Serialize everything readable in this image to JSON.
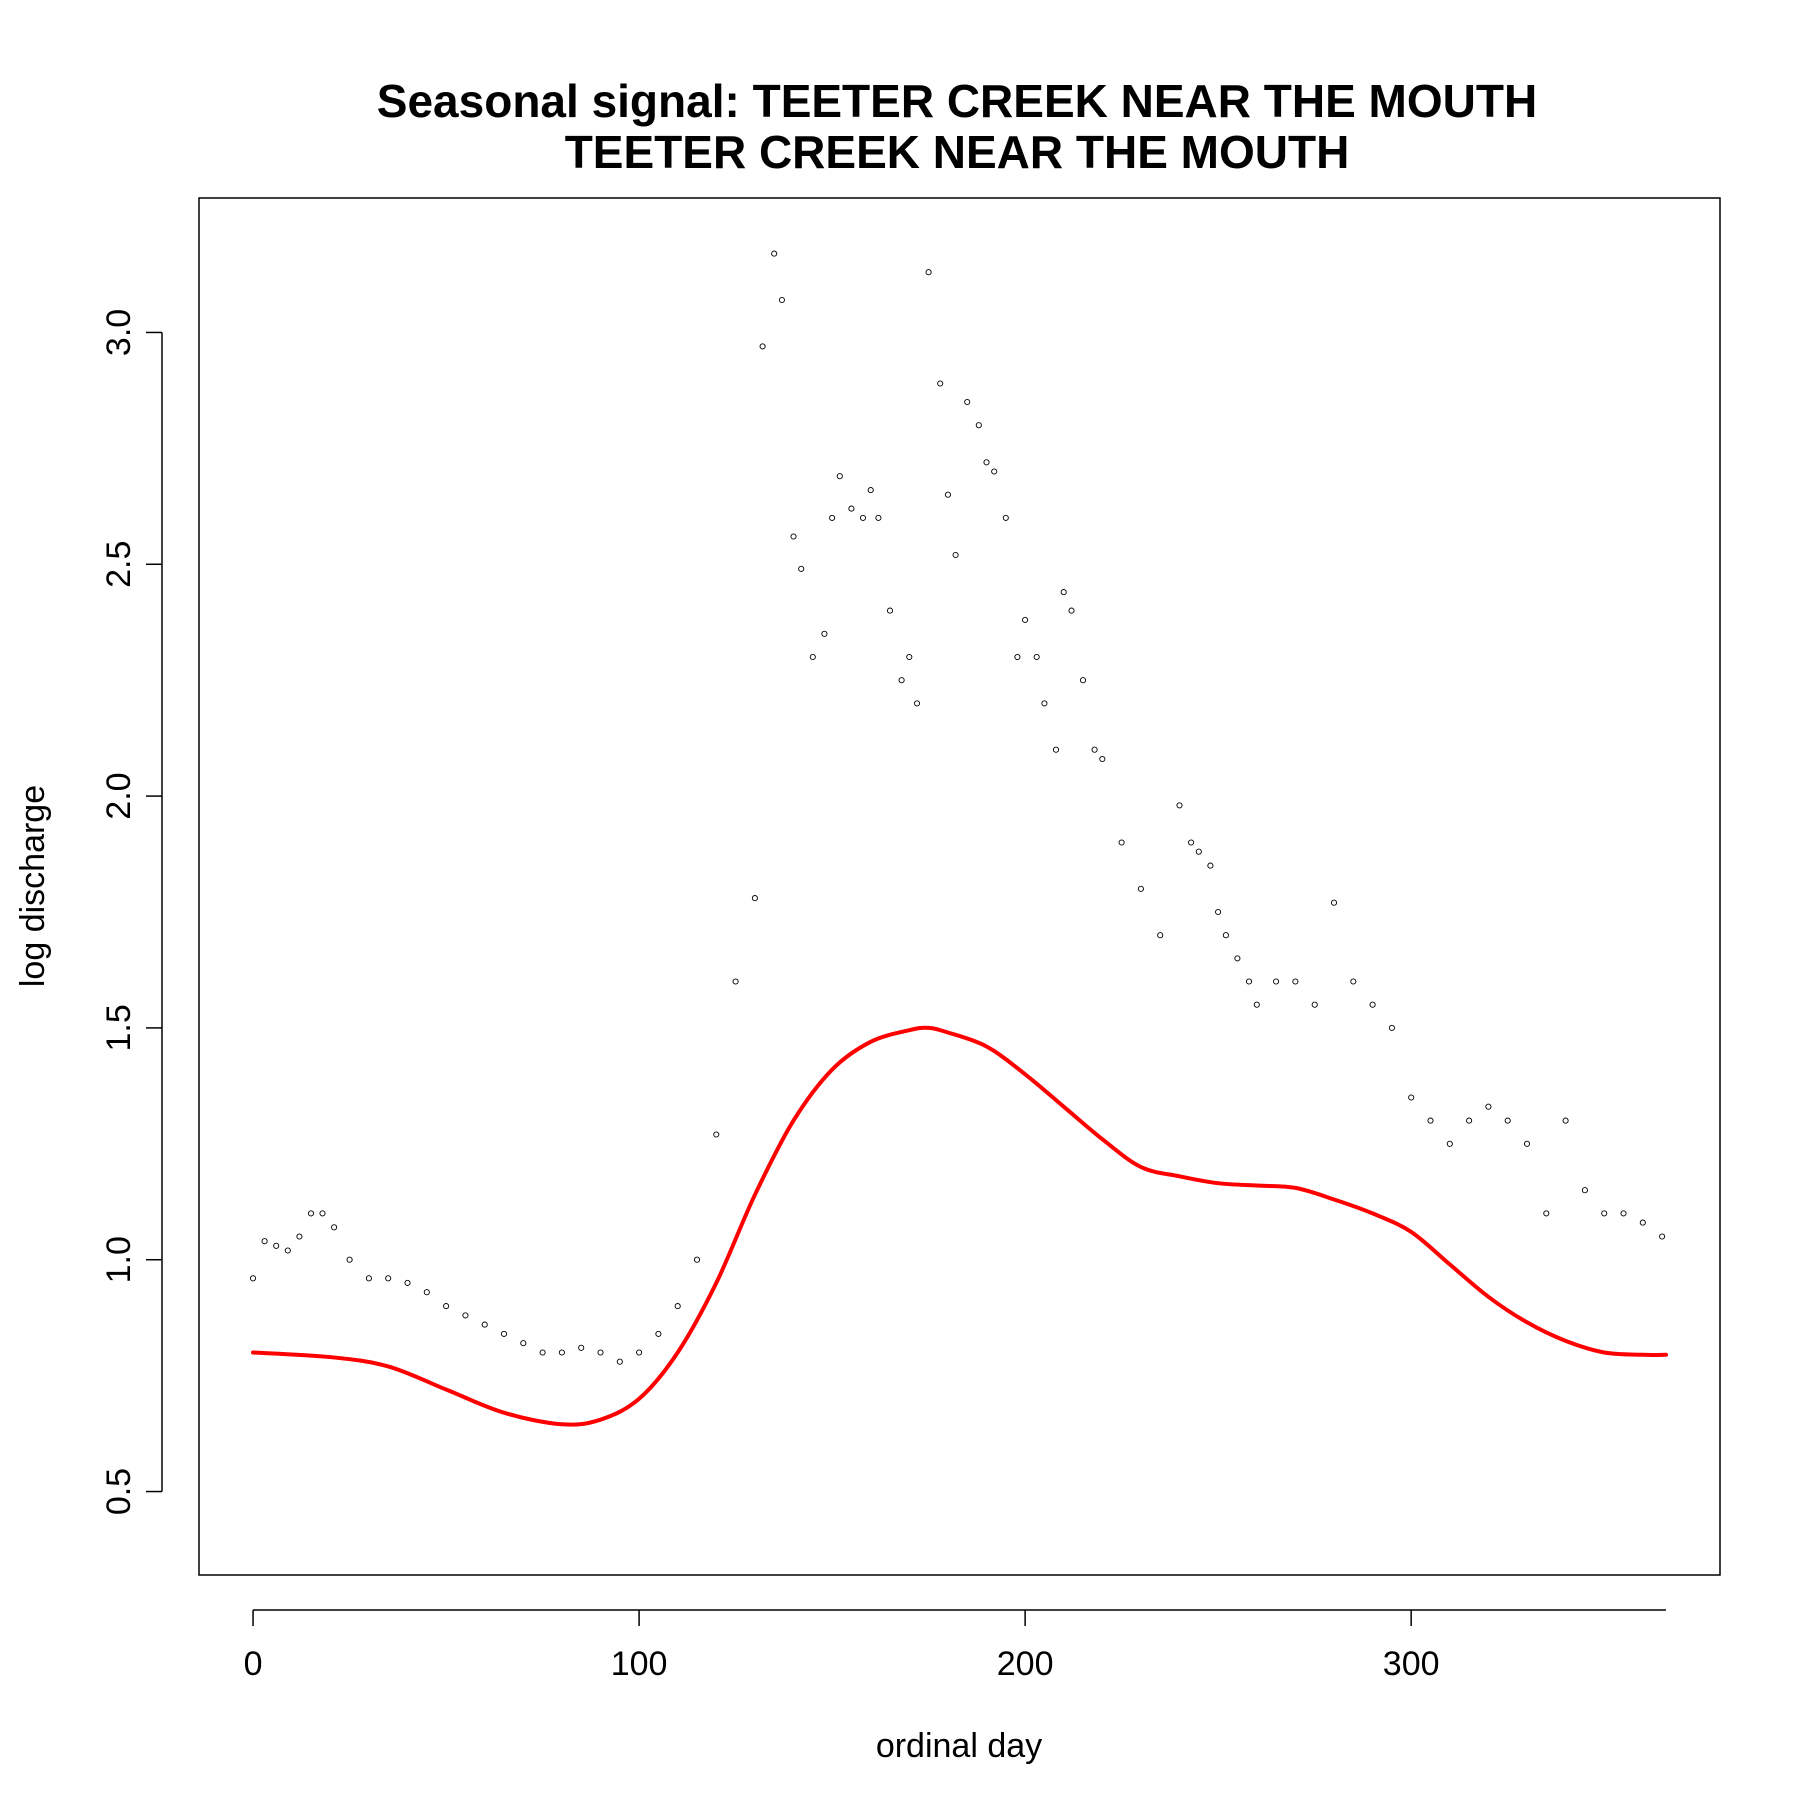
{
  "chart_data": {
    "type": "scatter",
    "title": "Seasonal signal: TEETER CREEK NEAR THE MOUTH",
    "subtitle": "TEETER CREEK NEAR THE MOUTH",
    "xlabel": "ordinal day",
    "ylabel": "log discharge",
    "xlim": [
      -14,
      380
    ],
    "ylim": [
      0.32,
      3.29
    ],
    "x_ticks": [
      0,
      100,
      200,
      300
    ],
    "x_tick_labels": [
      "0",
      "100",
      "200",
      "300"
    ],
    "y_ticks": [
      0.5,
      1.0,
      1.5,
      2.0,
      2.5,
      3.0
    ],
    "y_tick_labels": [
      "0.5",
      "1.0",
      "1.5",
      "2.0",
      "2.5",
      "3.0"
    ],
    "grid": false,
    "legend": "none",
    "colors": {
      "points": "#000000",
      "smooth": "#ff0000"
    },
    "series": [
      {
        "kind": "points",
        "description_points": "daily observations (approximate sample)",
        "x": [
          0,
          3,
          6,
          9,
          12,
          15,
          18,
          21,
          25,
          30,
          35,
          40,
          45,
          50,
          55,
          60,
          65,
          70,
          75,
          80,
          85,
          90,
          95,
          100,
          105,
          110,
          115,
          120,
          125,
          130,
          132,
          135,
          137,
          140,
          142,
          145,
          148,
          150,
          152,
          155,
          158,
          160,
          162,
          165,
          168,
          170,
          172,
          175,
          178,
          180,
          182,
          185,
          188,
          190,
          192,
          195,
          198,
          200,
          203,
          205,
          208,
          210,
          212,
          215,
          218,
          220,
          225,
          230,
          235,
          240,
          243,
          245,
          248,
          250,
          252,
          255,
          258,
          260,
          265,
          270,
          275,
          280,
          285,
          290,
          295,
          300,
          305,
          310,
          315,
          320,
          325,
          330,
          335,
          340,
          345,
          350,
          355,
          360,
          365
        ],
        "y": [
          0.96,
          1.04,
          1.03,
          1.02,
          1.05,
          1.1,
          1.1,
          1.07,
          1.0,
          0.96,
          0.96,
          0.95,
          0.93,
          0.9,
          0.88,
          0.86,
          0.84,
          0.82,
          0.8,
          0.8,
          0.81,
          0.8,
          0.78,
          0.8,
          0.84,
          0.9,
          1.0,
          1.27,
          1.6,
          1.78,
          2.97,
          3.17,
          3.07,
          2.56,
          2.49,
          2.3,
          2.35,
          2.6,
          2.69,
          2.62,
          2.6,
          2.66,
          2.6,
          2.4,
          2.25,
          2.3,
          2.2,
          3.13,
          2.89,
          2.65,
          2.52,
          2.85,
          2.8,
          2.72,
          2.7,
          2.6,
          2.3,
          2.38,
          2.3,
          2.2,
          2.1,
          2.44,
          2.4,
          2.25,
          2.1,
          2.08,
          1.9,
          1.8,
          1.7,
          1.98,
          1.9,
          1.88,
          1.85,
          1.75,
          1.7,
          1.65,
          1.6,
          1.55,
          1.6,
          1.6,
          1.55,
          1.77,
          1.6,
          1.55,
          1.5,
          1.35,
          1.3,
          1.25,
          1.3,
          1.33,
          1.3,
          1.25,
          1.1,
          1.3,
          1.15,
          1.1,
          1.1,
          1.08,
          1.05
        ]
      },
      {
        "kind": "smooth",
        "description_points": "seasonal fit",
        "x": [
          0,
          20,
          35,
          50,
          65,
          80,
          90,
          100,
          110,
          120,
          130,
          140,
          150,
          160,
          170,
          175,
          180,
          190,
          200,
          210,
          220,
          230,
          240,
          250,
          260,
          270,
          280,
          290,
          300,
          310,
          320,
          330,
          340,
          350,
          360,
          366
        ],
        "y": [
          0.8,
          0.79,
          0.77,
          0.72,
          0.67,
          0.645,
          0.655,
          0.7,
          0.8,
          0.95,
          1.14,
          1.3,
          1.41,
          1.47,
          1.495,
          1.5,
          1.49,
          1.46,
          1.4,
          1.33,
          1.26,
          1.2,
          1.18,
          1.165,
          1.16,
          1.155,
          1.13,
          1.1,
          1.06,
          0.99,
          0.92,
          0.865,
          0.825,
          0.8,
          0.795,
          0.795
        ]
      }
    ]
  }
}
